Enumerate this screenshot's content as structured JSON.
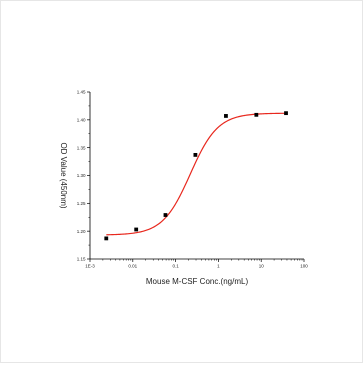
{
  "chart_data": {
    "type": "scatter",
    "xlabel": "Mouse M-CSF Conc.(ng/mL)",
    "ylabel": "OD Value (450nm)",
    "x_scale": "log",
    "xlim": [
      0.001,
      100
    ],
    "ylim": [
      1.15,
      1.45
    ],
    "x_ticks": [
      0.001,
      0.01,
      0.1,
      1,
      10,
      100
    ],
    "x_tick_labels": [
      "1E-3",
      "0.01",
      "0.1",
      "1",
      "10",
      "100"
    ],
    "y_ticks": [
      1.15,
      1.2,
      1.25,
      1.3,
      1.35,
      1.4,
      1.45
    ],
    "y_tick_labels": [
      "1.15",
      "1.20",
      "1.25",
      "1.30",
      "1.35",
      "1.40",
      "1.45"
    ],
    "grid": false,
    "series": [
      {
        "kind": "points",
        "x": [
          0.0024,
          0.012,
          0.058,
          0.29,
          1.5,
          7.7,
          38
        ],
        "y": [
          1.187,
          1.203,
          1.229,
          1.337,
          1.407,
          1.409,
          1.412
        ],
        "color": "#000000"
      },
      {
        "kind": "fit-curve",
        "model": "4PL",
        "bottom": 1.193,
        "top": 1.412,
        "ec50": 0.22,
        "hill": 1.35,
        "color": "#e8281e"
      }
    ]
  }
}
